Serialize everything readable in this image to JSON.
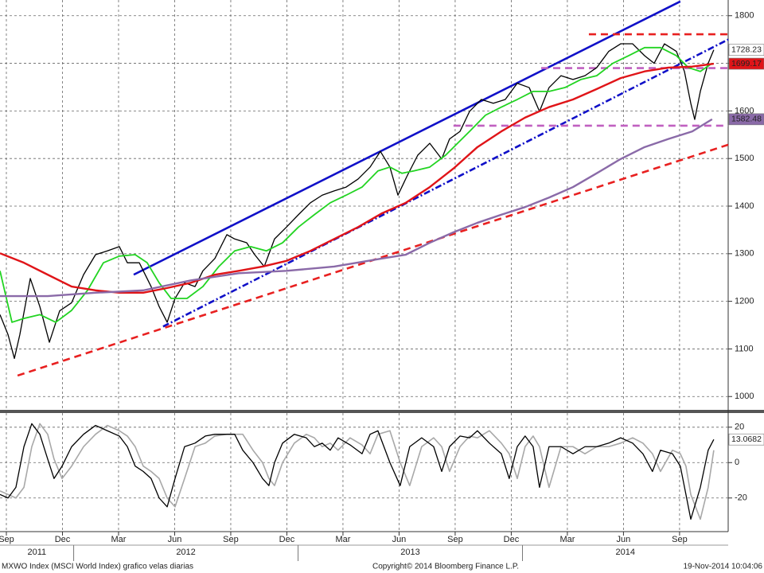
{
  "chart_data": [
    {
      "type": "line",
      "xlim": [
        -0.34,
        38.6
      ],
      "ylim": [
        972,
        1833
      ],
      "yticks": [
        1000,
        1100,
        1200,
        1300,
        1400,
        1500,
        1600,
        1700,
        1800
      ],
      "grid": true,
      "series": [
        {
          "color": "#000000",
          "width": 1.3,
          "x": [
            -0.34,
            0.09,
            0.43,
            0.72,
            1.28,
            1.79,
            2.3,
            2.85,
            3.49,
            4.13,
            4.77,
            5.4,
            6.04,
            6.47,
            7.11,
            7.74,
            8.17,
            8.6,
            9.02,
            9.53,
            10.09,
            10.51,
            11.15,
            11.79,
            12.21,
            12.85,
            13.28,
            13.79,
            14.34,
            14.98,
            15.62,
            16.26,
            16.89,
            17.53,
            18.17,
            18.81,
            19.45,
            20,
            20.51,
            20.94,
            21.45,
            22,
            22.64,
            23.28,
            23.7,
            24.26,
            24.77,
            25.4,
            26.04,
            26.68,
            27.32,
            27.96,
            28.51,
            29.02,
            29.66,
            30.3,
            30.94,
            31.57,
            32.21,
            32.85,
            33.49,
            34.13,
            34.64,
            35.19,
            35.83,
            36.26,
            36.6,
            36.81,
            37.11,
            37.53,
            37.83
          ],
          "values": [
            1172,
            1130,
            1080,
            1130,
            1248,
            1189,
            1114,
            1180,
            1197,
            1256,
            1298,
            1306,
            1315,
            1281,
            1281,
            1231,
            1189,
            1156,
            1206,
            1239,
            1231,
            1264,
            1290,
            1340,
            1331,
            1323,
            1298,
            1273,
            1331,
            1356,
            1382,
            1407,
            1423,
            1432,
            1440,
            1457,
            1482,
            1515,
            1482,
            1423,
            1465,
            1507,
            1532,
            1499,
            1541,
            1557,
            1599,
            1624,
            1616,
            1624,
            1658,
            1649,
            1599,
            1649,
            1674,
            1666,
            1674,
            1691,
            1725,
            1741,
            1741,
            1716,
            1700,
            1741,
            1725,
            1683,
            1616,
            1582,
            1641,
            1700,
            1728.23
          ]
        },
        {
          "color": "#22d422",
          "width": 1.8,
          "x": [
            -0.34,
            0.3,
            0.94,
            1.79,
            2.64,
            3.49,
            4.34,
            5.19,
            6.04,
            6.89,
            7.53,
            8.17,
            8.81,
            9.66,
            10.51,
            11.36,
            12.21,
            13.06,
            13.91,
            14.77,
            15.62,
            16.47,
            17.32,
            18.17,
            19.02,
            19.87,
            20.51,
            21.15,
            21.79,
            22.64,
            23.49,
            24.13,
            24.77,
            25.62,
            26.47,
            27.32,
            28.17,
            29.02,
            29.87,
            30.72,
            31.57,
            32.43,
            33.28,
            34.13,
            34.98,
            35.83,
            36.47,
            37.11,
            37.74
          ],
          "values": [
            1264,
            1156,
            1164,
            1172,
            1156,
            1181,
            1223,
            1281,
            1295,
            1298,
            1281,
            1239,
            1206,
            1206,
            1231,
            1273,
            1306,
            1315,
            1306,
            1323,
            1356,
            1382,
            1407,
            1423,
            1440,
            1474,
            1482,
            1469,
            1474,
            1482,
            1507,
            1532,
            1557,
            1591,
            1608,
            1624,
            1641,
            1641,
            1649,
            1666,
            1674,
            1700,
            1716,
            1733,
            1733,
            1716,
            1691,
            1683,
            1700
          ]
        },
        {
          "color": "#e01418",
          "width": 2.4,
          "x": [
            -0.34,
            0.94,
            2.21,
            3.49,
            4.77,
            6.04,
            7.32,
            8.6,
            9.87,
            11.15,
            12.43,
            13.7,
            14.98,
            16.26,
            17.53,
            18.81,
            20.09,
            21.36,
            22.64,
            23.91,
            25.19,
            26.47,
            27.74,
            29.02,
            30.3,
            31.57,
            32.85,
            34.13,
            35.4,
            36.68,
            37.83
          ],
          "values": [
            1301,
            1281,
            1256,
            1231,
            1223,
            1218,
            1218,
            1228,
            1239,
            1256,
            1264,
            1273,
            1285,
            1306,
            1331,
            1356,
            1385,
            1407,
            1440,
            1479,
            1524,
            1557,
            1586,
            1608,
            1624,
            1646,
            1669,
            1683,
            1691,
            1693,
            1699.17
          ]
        },
        {
          "color": "#8a6aa8",
          "width": 2.4,
          "x": [
            -0.34,
            2.21,
            4.77,
            7.32,
            9.87,
            12.43,
            14.98,
            17.53,
            20.09,
            21.36,
            22.64,
            23.91,
            25.19,
            26.47,
            27.74,
            29.02,
            30.3,
            31.57,
            32.85,
            34.13,
            35.4,
            36.68,
            37.74
          ],
          "values": [
            1211,
            1211,
            1218,
            1223,
            1244,
            1259,
            1264,
            1273,
            1290,
            1298,
            1323,
            1345,
            1365,
            1382,
            1398,
            1418,
            1440,
            1469,
            1499,
            1524,
            1541,
            1557,
            1582.48
          ]
        }
      ],
      "trendlines": [
        {
          "x": [
            6.81,
            36.04
          ],
          "y": [
            1256,
            1830
          ],
          "color": "#1010c8",
          "style": "solid"
        },
        {
          "x": [
            8.38,
            38.6
          ],
          "y": [
            1147,
            1750
          ],
          "color": "#1010c8",
          "style": "dashdot"
        },
        {
          "x": [
            0.6,
            38.6
          ],
          "y": [
            1044,
            1529
          ],
          "color": "#e82020",
          "style": "dashed"
        },
        {
          "x": [
            31.15,
            38.6
          ],
          "y": [
            1761,
            1761
          ],
          "color": "#e82020",
          "style": "dashed"
        },
        {
          "x": [
            28.6,
            38.6
          ],
          "y": [
            1690,
            1690
          ],
          "color": "#c060c0",
          "style": "dashed"
        },
        {
          "x": [
            23.91,
            38.6
          ],
          "y": [
            1569,
            1569
          ],
          "color": "#c060c0",
          "style": "dashed"
        }
      ],
      "end_labels": [
        {
          "value": 1728.23,
          "color": "#ffffff",
          "text_color": "#000000"
        },
        {
          "value": 1699.17,
          "color": "#e01418",
          "text_color": "#000000"
        },
        {
          "value": 1582.48,
          "color": "#8a6aa8",
          "text_color": "#ffffff"
        }
      ]
    },
    {
      "type": "line",
      "xlim": [
        -0.34,
        38.6
      ],
      "ylim": [
        -39,
        28
      ],
      "yticks": [
        20,
        0,
        -20
      ],
      "grid": true,
      "xticks": [
        {
          "value": 0,
          "label": "Sep"
        },
        {
          "value": 3,
          "label": "Dec"
        },
        {
          "value": 6,
          "label": "Mar"
        },
        {
          "value": 9,
          "label": "Jun"
        },
        {
          "value": 12,
          "label": "Sep"
        },
        {
          "value": 15,
          "label": "Dec"
        },
        {
          "value": 18,
          "label": "Mar"
        },
        {
          "value": 21,
          "label": "Jun"
        },
        {
          "value": 24,
          "label": "Sep"
        },
        {
          "value": 27,
          "label": "Dec"
        },
        {
          "value": 30,
          "label": "Mar"
        },
        {
          "value": 33,
          "label": "Jun"
        },
        {
          "value": 36,
          "label": "Sep"
        }
      ],
      "year_ticks": [
        {
          "value": -8.4,
          "label": "2011"
        },
        {
          "value": 3.6,
          "label": "2012"
        },
        {
          "value": 15.6,
          "label": "2013"
        },
        {
          "value": 27.6,
          "label": "2014"
        }
      ],
      "series": [
        {
          "color": "#a8a8a8",
          "width": 1.6,
          "x": [
            -0.34,
            0.09,
            0.51,
            0.94,
            1.36,
            1.79,
            2.21,
            2.55,
            2.98,
            3.49,
            4.13,
            4.77,
            5.4,
            6.04,
            6.47,
            6.89,
            7.32,
            7.74,
            8.17,
            8.6,
            9.02,
            9.53,
            10.09,
            10.64,
            11.15,
            11.79,
            12.21,
            12.64,
            13.19,
            13.7,
            14.04,
            14.34,
            14.77,
            15.4,
            16.04,
            16.47,
            16.89,
            17.32,
            17.74,
            18.38,
            19.02,
            19.45,
            19.87,
            20.51,
            21.06,
            21.57,
            22.21,
            22.85,
            23.28,
            23.7,
            24.26,
            24.77,
            25.19,
            25.83,
            26.47,
            26.89,
            27.32,
            27.74,
            28.17,
            28.51,
            29.02,
            29.66,
            30.3,
            30.94,
            31.57,
            32.21,
            32.85,
            33.49,
            34.04,
            34.55,
            34.98,
            35.62,
            36.04,
            36.34,
            36.6,
            37.11,
            37.53,
            37.83
          ],
          "values": [
            -16,
            -18,
            -20,
            -14,
            9,
            22,
            16,
            2,
            -9,
            -2,
            9,
            16,
            21,
            18,
            15,
            9,
            -2,
            -5,
            -9,
            -20,
            -25,
            -9,
            9,
            11,
            15,
            16,
            16,
            16,
            7,
            0,
            -9,
            -13,
            0,
            11,
            16,
            14,
            9,
            11,
            7,
            14,
            10,
            5,
            16,
            18,
            0,
            -13,
            9,
            14,
            9,
            -5,
            9,
            15,
            14,
            18,
            11,
            5,
            -9,
            9,
            15,
            9,
            -14,
            9,
            9,
            5,
            9,
            9,
            11,
            14,
            11,
            5,
            -5,
            7,
            5,
            -2,
            -18,
            -32,
            -14,
            7
          ]
        },
        {
          "color": "#000000",
          "width": 1.3,
          "x": [
            -0.34,
            0.09,
            0.51,
            0.94,
            1.36,
            1.79,
            2.21,
            2.55,
            2.98,
            3.49,
            4.13,
            4.77,
            5.4,
            6.04,
            6.47,
            6.89,
            7.32,
            7.74,
            8.17,
            8.6,
            9.02,
            9.53,
            10.09,
            10.64,
            11.15,
            11.79,
            12.21,
            12.64,
            13.19,
            13.7,
            14.04,
            14.34,
            14.77,
            15.4,
            16.04,
            16.47,
            16.89,
            17.32,
            17.74,
            18.38,
            19.02,
            19.45,
            19.87,
            20.51,
            21.06,
            21.57,
            22.21,
            22.85,
            23.28,
            23.7,
            24.26,
            24.77,
            25.19,
            25.83,
            26.47,
            26.89,
            27.32,
            27.74,
            28.17,
            28.51,
            29.02,
            29.66,
            30.3,
            30.94,
            31.57,
            32.21,
            32.85,
            33.49,
            34.04,
            34.55,
            34.98,
            35.62,
            36.04,
            36.34,
            36.6,
            37.11,
            37.53,
            37.83
          ],
          "values": [
            -18,
            -20,
            -14,
            9,
            22,
            16,
            2,
            -9,
            -2,
            9,
            16,
            21,
            18,
            15,
            9,
            -2,
            -5,
            -9,
            -20,
            -25,
            -9,
            9,
            11,
            15,
            16,
            16,
            16,
            7,
            0,
            -9,
            -13,
            0,
            11,
            16,
            14,
            9,
            11,
            7,
            14,
            10,
            5,
            16,
            18,
            0,
            -13,
            9,
            14,
            9,
            -5,
            9,
            15,
            14,
            18,
            11,
            5,
            -9,
            9,
            15,
            9,
            -14,
            9,
            9,
            5,
            9,
            9,
            11,
            14,
            11,
            5,
            -5,
            7,
            5,
            -2,
            -18,
            -32,
            -14,
            7,
            13.07
          ]
        }
      ],
      "end_labels": [
        {
          "value": 13.0682,
          "color": "#ffffff",
          "text_color": "#000000"
        }
      ]
    }
  ],
  "footer": {
    "left": "MXWO Index (MSCI World Index) grafico velas diarias",
    "center": "Copyright© 2014 Bloomberg Finance L.P.",
    "right": "19-Nov-2014 10:04:06"
  }
}
